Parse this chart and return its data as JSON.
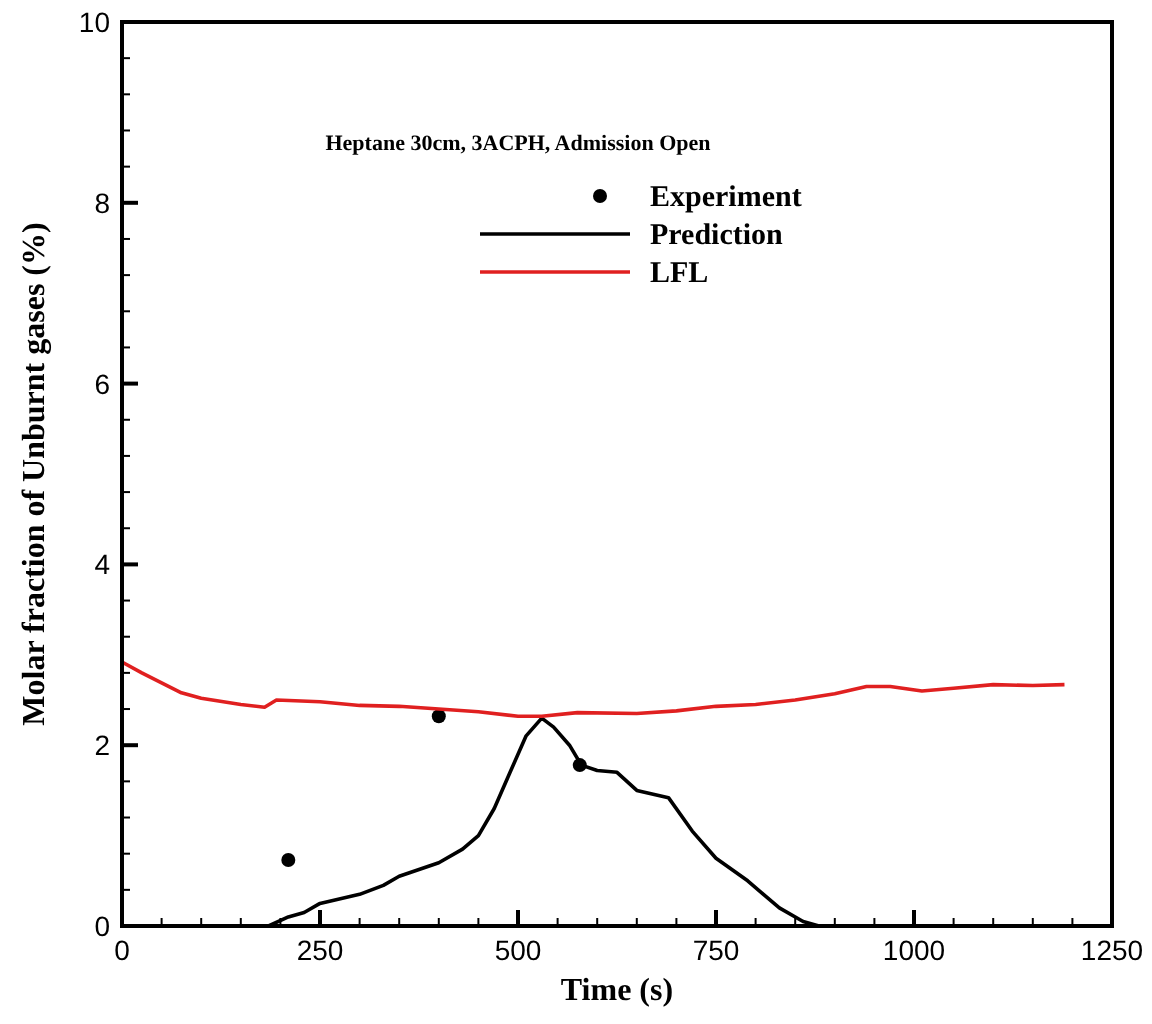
{
  "chart_data": {
    "type": "line",
    "title": "Heptane 30cm, 3ACPH, Admission Open",
    "xlabel": "Time (s)",
    "ylabel": "Molar fraction of Unburnt gases (%)",
    "xlim": [
      0,
      1250
    ],
    "xticks": [
      0,
      250,
      500,
      750,
      1000,
      1250
    ],
    "ylim": [
      0,
      10
    ],
    "yticks": [
      0,
      2,
      4,
      6,
      8,
      10
    ],
    "grid": false,
    "legend": "top",
    "series": [
      {
        "name": "Experiment",
        "type": "scatter",
        "marker": "circle",
        "color": "#000000",
        "x": [
          210,
          400,
          578
        ],
        "values": [
          0.73,
          2.32,
          1.78
        ]
      },
      {
        "name": "Prediction",
        "color": "#000000",
        "x": [
          185,
          210,
          230,
          250,
          300,
          330,
          350,
          400,
          430,
          450,
          470,
          490,
          510,
          530,
          545,
          565,
          580,
          600,
          625,
          650,
          690,
          720,
          750,
          790,
          830,
          860,
          880
        ],
        "values": [
          0,
          0.1,
          0.15,
          0.25,
          0.35,
          0.45,
          0.55,
          0.7,
          0.85,
          1.0,
          1.3,
          1.7,
          2.1,
          2.3,
          2.2,
          2.0,
          1.78,
          1.72,
          1.7,
          1.5,
          1.42,
          1.05,
          0.75,
          0.5,
          0.2,
          0.05,
          0
        ]
      },
      {
        "name": "LFL",
        "color": "#e02020",
        "x": [
          0,
          25,
          75,
          100,
          150,
          180,
          195,
          250,
          300,
          350,
          400,
          450,
          500,
          530,
          575,
          650,
          700,
          750,
          800,
          850,
          900,
          940,
          970,
          1010,
          1050,
          1100,
          1150,
          1190
        ],
        "values": [
          2.92,
          2.8,
          2.58,
          2.52,
          2.45,
          2.42,
          2.5,
          2.48,
          2.44,
          2.43,
          2.4,
          2.37,
          2.32,
          2.32,
          2.36,
          2.35,
          2.38,
          2.43,
          2.45,
          2.5,
          2.57,
          2.65,
          2.65,
          2.6,
          2.63,
          2.67,
          2.66,
          2.67
        ]
      }
    ]
  }
}
